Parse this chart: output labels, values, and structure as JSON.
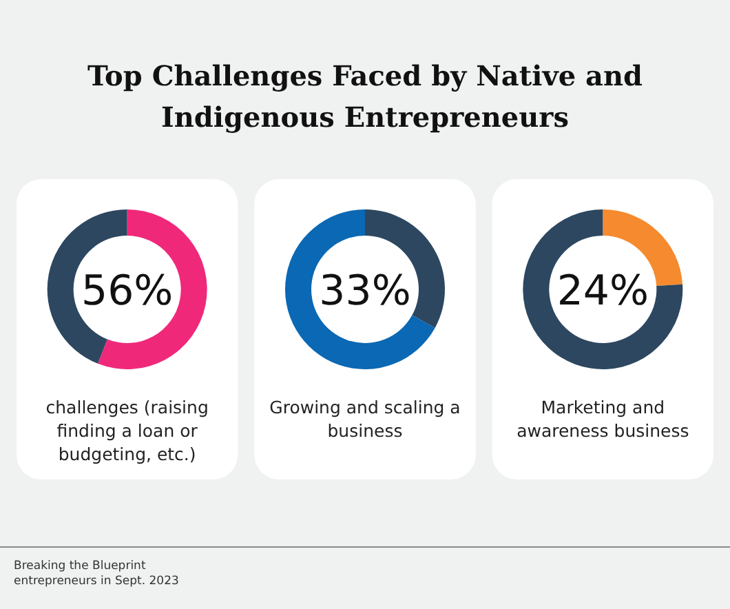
{
  "chart_data": [
    {
      "type": "donut",
      "title": "Top Challenges Faced by Native and Indigenous Entrepreneurs",
      "xlabel": "challenges (raising finding a loan or budgeting, etc.)",
      "categories": [
        null,
        null
      ],
      "values": [
        56,
        44
      ],
      "colors": [
        "#f0287a",
        "#2d4760"
      ],
      "annotations": [
        "56%",
        "Breaking the Blueprint",
        "entrepreneurs in Sept. 2023"
      ]
    },
    {
      "type": "donut",
      "xlabel": "Growing and scaling a business",
      "categories": [
        null,
        null
      ],
      "values": [
        33,
        67
      ],
      "colors": [
        "#2d4760",
        "#0a68b4"
      ],
      "annotations": [
        "33%"
      ]
    },
    {
      "type": "donut",
      "xlabel": "Marketing and awareness business",
      "categories": [
        null,
        null
      ],
      "values": [
        24,
        76
      ],
      "colors": [
        "#f58a2e",
        "#2d4760"
      ],
      "annotations": [
        "24%"
      ]
    }
  ]
}
